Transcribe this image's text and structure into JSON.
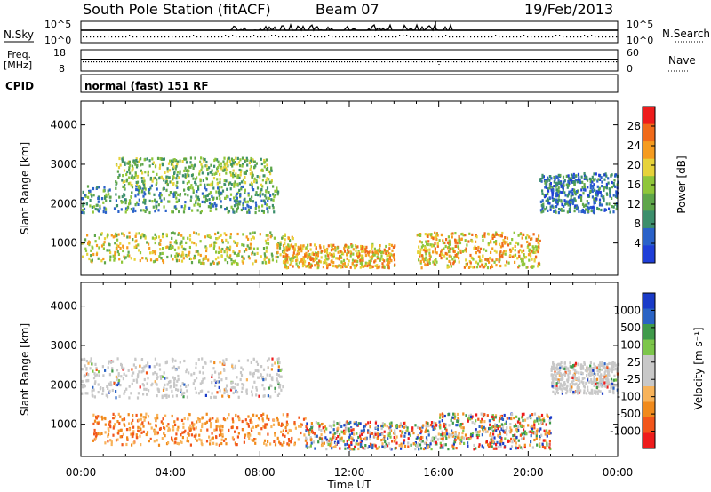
{
  "header": {
    "station": "South Pole Station (fitACF)",
    "beam": "Beam 07",
    "date": "19/Feb/2013"
  },
  "top_panels": {
    "nsky_label": "N.Sky",
    "nsearch_label": "N.Search",
    "nsky_ticks": [
      "10^5",
      "10^0"
    ],
    "nsearch_ticks": [
      "10^5",
      "10^0"
    ],
    "freq_label_line1": "Freq.",
    "freq_label_line2": "[MHz]",
    "freq_ticks": [
      "18",
      "8"
    ],
    "nave_label": "Nave",
    "nave_ticks": [
      "60",
      "0"
    ],
    "cpid_label": "CPID",
    "cpid_text": "normal (fast) 151 RF"
  },
  "colors": {
    "power": [
      "#1f3fd8",
      "#2a62c9",
      "#3c8f6c",
      "#5ea64a",
      "#8fc63a",
      "#e6d23a",
      "#f59b1f",
      "#f06a1a",
      "#ee1c1c"
    ],
    "velocity": [
      "#ee1c1c",
      "#f2561b",
      "#f08a1c",
      "#f8b35a",
      "#c8c8c8",
      "#c8c8c8",
      "#7cc64a",
      "#3f9a4a",
      "#2a63c4",
      "#1a3bc8"
    ]
  },
  "chart_data": [
    {
      "type": "heatmap",
      "name": "power",
      "ylabel": "Slant Range [km]",
      "ylim": [
        180,
        4600
      ],
      "yticks": [
        1000,
        2000,
        3000,
        4000
      ],
      "xlim": [
        0,
        24
      ],
      "colorbar_label": "Power [dB]",
      "colorbar_ticks": [
        "4",
        "8",
        "12",
        "16",
        "20",
        "24",
        "28"
      ],
      "colorbar_range": [
        0,
        32
      ],
      "scatter_regions": [
        {
          "t": [
            0.0,
            8.8
          ],
          "r": [
            1800,
            2500
          ],
          "level": "low-mid"
        },
        {
          "t": [
            1.5,
            8.5
          ],
          "r": [
            2500,
            3200
          ],
          "level": "mid"
        },
        {
          "t": [
            0.0,
            9.5
          ],
          "r": [
            500,
            1300
          ],
          "level": "mid-high"
        },
        {
          "t": [
            9.0,
            14.0
          ],
          "r": [
            400,
            1000
          ],
          "level": "high"
        },
        {
          "t": [
            15.0,
            20.5
          ],
          "r": [
            400,
            1300
          ],
          "level": "high"
        },
        {
          "t": [
            20.5,
            24.0
          ],
          "r": [
            1800,
            2800
          ],
          "level": "low"
        }
      ]
    },
    {
      "type": "heatmap",
      "name": "velocity",
      "ylabel": "Slant Range [km]",
      "ylim": [
        180,
        4600
      ],
      "yticks": [
        1000,
        2000,
        3000,
        4000
      ],
      "xlim": [
        0,
        24
      ],
      "xlabel": "Time UT",
      "xticks": [
        "00:00",
        "04:00",
        "08:00",
        "12:00",
        "16:00",
        "20:00",
        "00:00"
      ],
      "colorbar_label": "Velocity [m s⁻¹]",
      "colorbar_ticks": [
        "1000",
        "500",
        "100",
        "25",
        "-25",
        "-100",
        "-500",
        "-1000"
      ],
      "scatter_regions": [
        {
          "t": [
            0.0,
            9.0
          ],
          "r": [
            1700,
            2700
          ],
          "level": "ground-scatter"
        },
        {
          "t": [
            0.5,
            10.0
          ],
          "r": [
            500,
            1300
          ],
          "level": "negative"
        },
        {
          "t": [
            10.0,
            16.0
          ],
          "r": [
            400,
            1100
          ],
          "level": "mixed"
        },
        {
          "t": [
            16.0,
            21.0
          ],
          "r": [
            400,
            1300
          ],
          "level": "mixed"
        },
        {
          "t": [
            21.0,
            24.0
          ],
          "r": [
            1800,
            2600
          ],
          "level": "ground-scatter"
        }
      ]
    }
  ]
}
